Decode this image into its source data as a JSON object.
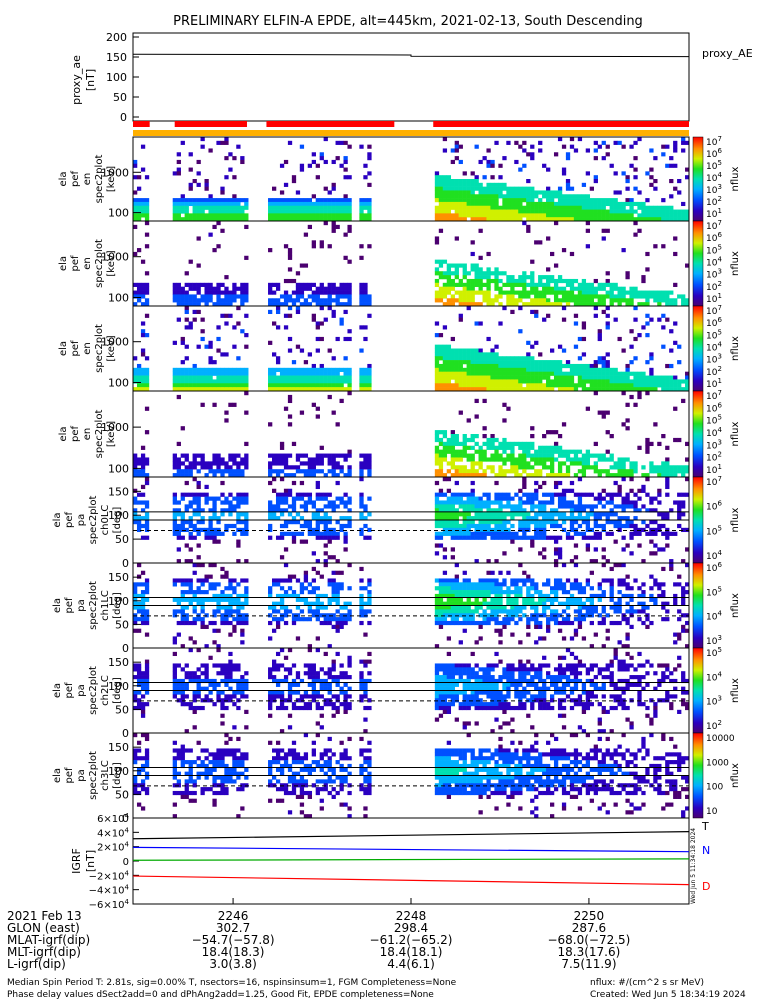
{
  "title": "PRELIMINARY ELFIN-A EPDE, alt=445km, 2021-02-13, South Descending",
  "chart_data": [
    {
      "type": "line",
      "panel": "proxy_ae",
      "ylabel": [
        "proxy_ae",
        "[nT]"
      ],
      "yticks": [
        "200",
        "150",
        "100",
        "50",
        "0"
      ],
      "ylim": [
        -10,
        210
      ],
      "series": [
        {
          "name": "proxy_AE",
          "x": [
            0,
            0.5,
            0.5,
            1
          ],
          "values": [
            157,
            155,
            152,
            151
          ]
        }
      ],
      "legend": "proxy_AE",
      "bar_segments": [
        {
          "start": 0.0,
          "end": 0.03,
          "color": "#ff0000"
        },
        {
          "start": 0.075,
          "end": 0.205,
          "color": "#ff0000"
        },
        {
          "start": 0.24,
          "end": 0.47,
          "color": "#ff0000"
        },
        {
          "start": 0.54,
          "end": 1.0,
          "color": "#ff0000"
        }
      ]
    },
    {
      "type": "heatmap",
      "panel": "pef_spec2plot_energy",
      "ylabel": [
        "ela",
        "pef",
        "en",
        "spec2plot",
        "[keV]"
      ],
      "yticks": [
        "1000",
        "100"
      ],
      "colorbar": [
        "10^7",
        "10^6",
        "10^5",
        "10^4",
        "10^3",
        "10^2",
        "10^1"
      ],
      "colorbar_label": "nflux",
      "log_scale": true
    },
    {
      "type": "heatmap",
      "panel": "pef_spec2plot_energy_2",
      "ylabel": [
        "ela",
        "pef",
        "en",
        "spec2plot",
        "[keV]"
      ],
      "yticks": [
        "1000",
        "100"
      ],
      "colorbar": [
        "10^7",
        "10^6",
        "10^5",
        "10^4",
        "10^3",
        "10^2",
        "10^1"
      ],
      "colorbar_label": "nflux",
      "log_scale": true
    },
    {
      "type": "heatmap",
      "panel": "pef_spec2plot_energy_3",
      "ylabel": [
        "ela",
        "pef",
        "en",
        "spec2plot",
        "[keV]"
      ],
      "yticks": [
        "1000",
        "100"
      ],
      "colorbar": [
        "10^7",
        "10^6",
        "10^5",
        "10^4",
        "10^3",
        "10^2",
        "10^1"
      ],
      "colorbar_label": "nflux",
      "log_scale": true
    },
    {
      "type": "heatmap",
      "panel": "pef_spec2plot_energy_4",
      "ylabel": [
        "ela",
        "pef",
        "en",
        "spec2plot",
        "[keV]"
      ],
      "yticks": [
        "1000",
        "100"
      ],
      "colorbar": [
        "10^7",
        "10^6",
        "10^5",
        "10^4",
        "10^3",
        "10^2",
        "10^1"
      ],
      "colorbar_label": "nflux",
      "log_scale": true
    },
    {
      "type": "heatmap",
      "panel": "pa_ch0LC",
      "ylabel": [
        "ela",
        "pef",
        "pa",
        "spec2plot",
        "ch0LC",
        "[deg]"
      ],
      "yticks": [
        "150",
        "100",
        "50",
        "0"
      ],
      "ylim": [
        0,
        180
      ],
      "colorbar": [
        "10^7",
        "10^6",
        "10^5",
        "10^4"
      ],
      "colorbar_label": "nflux",
      "log_scale": true
    },
    {
      "type": "heatmap",
      "panel": "pa_ch1LC",
      "ylabel": [
        "ela",
        "pef",
        "pa",
        "spec2plot",
        "ch1LC",
        "[deg]"
      ],
      "yticks": [
        "150",
        "100",
        "50",
        "0"
      ],
      "ylim": [
        0,
        180
      ],
      "colorbar": [
        "10^6",
        "10^5",
        "10^4",
        "10^3"
      ],
      "colorbar_label": "nflux",
      "log_scale": true
    },
    {
      "type": "heatmap",
      "panel": "pa_ch2LC",
      "ylabel": [
        "ela",
        "pef",
        "pa",
        "spec2plot",
        "ch2LC",
        "[deg]"
      ],
      "yticks": [
        "150",
        "100",
        "50",
        "0"
      ],
      "ylim": [
        0,
        180
      ],
      "colorbar": [
        "10^5",
        "10^4",
        "10^3",
        "10^2"
      ],
      "colorbar_label": "nflux",
      "log_scale": true
    },
    {
      "type": "heatmap",
      "panel": "pa_ch3LC",
      "ylabel": [
        "ela",
        "pef",
        "pa",
        "spec2plot",
        "ch3LC",
        "[deg]"
      ],
      "yticks": [
        "150",
        "100",
        "50",
        "0"
      ],
      "ylim": [
        0,
        180
      ],
      "colorbar": [
        "10000",
        "1000",
        "100",
        "10"
      ],
      "colorbar_label": "nflux",
      "log_scale": true
    },
    {
      "type": "line",
      "panel": "igrf",
      "ylabel": [
        "IGRF",
        "[nT]"
      ],
      "yticks": [
        "6×10^4",
        "4×10^4",
        "2×10^4",
        "0",
        "−2×10^4",
        "−4×10^4",
        "−6×10^4"
      ],
      "ylim": [
        -60000,
        60000
      ],
      "series": [
        {
          "name": "T",
          "color": "#000000",
          "x": [
            0,
            1
          ],
          "values": [
            31000,
            41000
          ]
        },
        {
          "name": "N",
          "color": "#0000ff",
          "x": [
            0,
            1
          ],
          "values": [
            19000,
            13000
          ]
        },
        {
          "name": "",
          "color": "#00aa00",
          "x": [
            0,
            1
          ],
          "values": [
            1000,
            3000
          ]
        },
        {
          "name": "D",
          "color": "#ff0000",
          "x": [
            0,
            1
          ],
          "values": [
            -21000,
            -33000
          ]
        }
      ]
    }
  ],
  "time_axis": {
    "ticks": [
      "2246",
      "2248",
      "2250"
    ],
    "rows": [
      {
        "label": "2021 Feb 13",
        "values": [
          "",
          "",
          ""
        ]
      },
      {
        "label": "GLON (east)",
        "values": [
          "302.7",
          "298.4",
          "287.6"
        ]
      },
      {
        "label": "MLAT-igrf(dip)",
        "values": [
          "−54.7(−57.8)",
          "−61.2(−65.2)",
          "−68.0(−72.5)"
        ]
      },
      {
        "label": "MLT-igrf(dip)",
        "values": [
          "18.4(18.3)",
          "18.4(18.1)",
          "18.3(17.6)"
        ]
      },
      {
        "label": "L-igrf(dip)",
        "values": [
          "3.0(3.8)",
          "4.4(6.1)",
          "7.5(11.9)"
        ]
      }
    ]
  },
  "footer": {
    "left1": "Median Spin Period T: 2.81s, sig=0.00% T, nsectors=16, nspinsinsum=1, FGM Completeness=None",
    "left2": "Phase delay values dSect2add=0 and dPhAng2add=1.25, Good Fit, EPDE completeness=None",
    "right1": "nflux: #/(cm^2 s sr MeV)",
    "right2": "Created: Wed Jun  5 18:34:19 2024"
  },
  "side_stamp": "Wed Jun 5 11:34:18 2024"
}
